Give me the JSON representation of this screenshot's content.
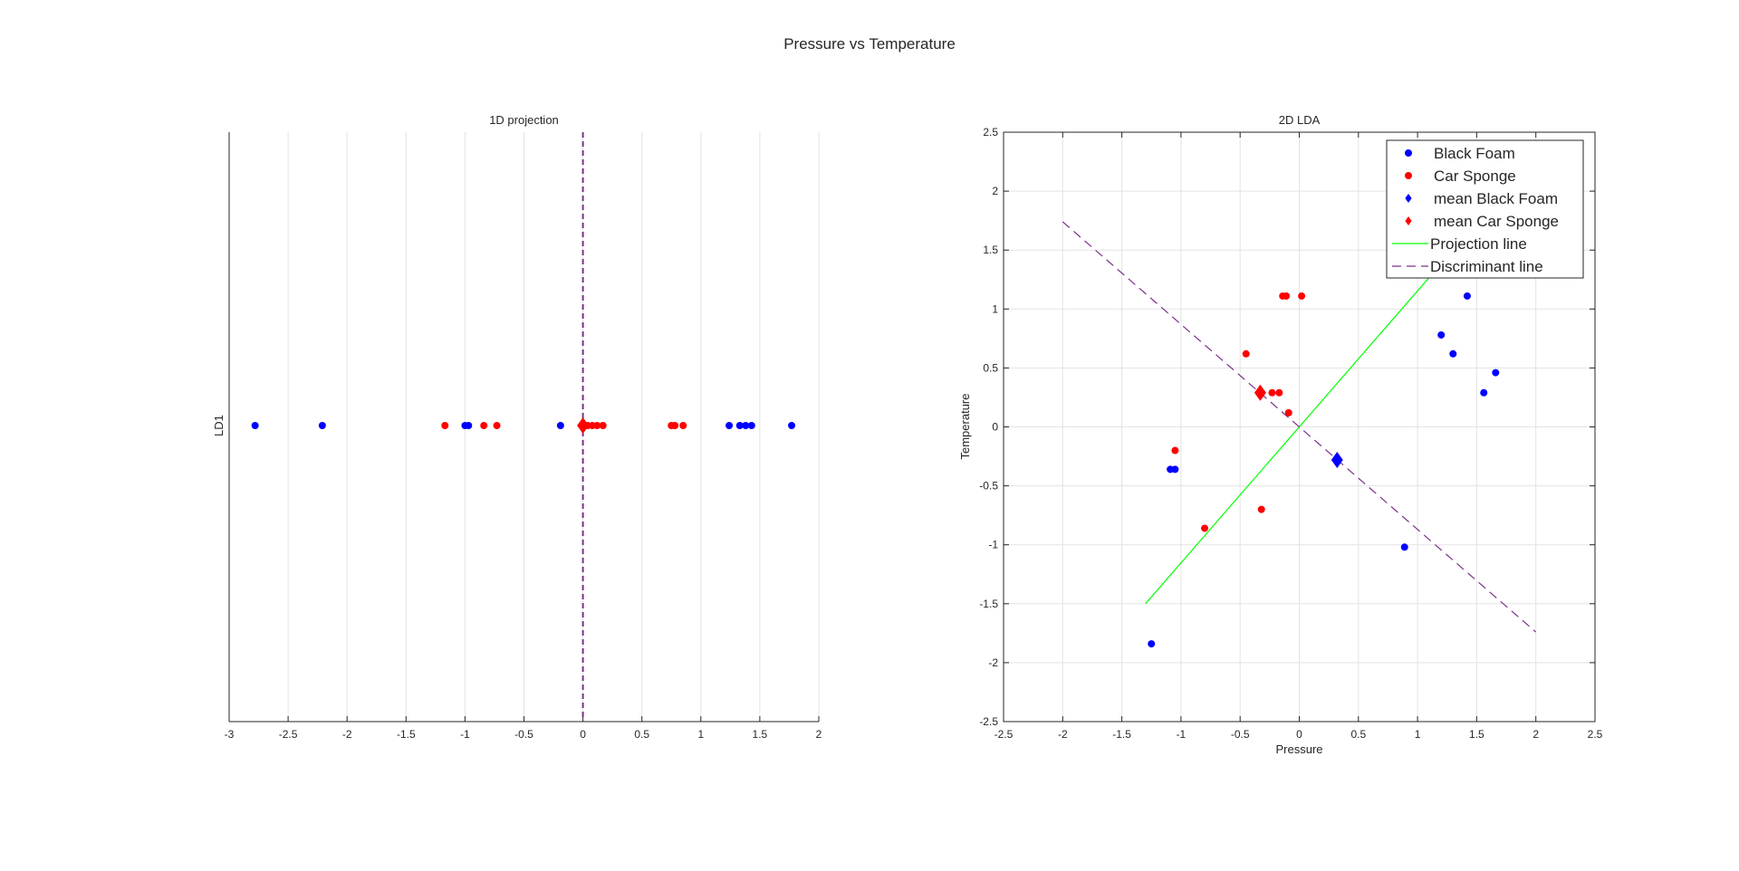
{
  "figure": {
    "title": "Pressure vs Temperature"
  },
  "colors": {
    "blue": "#0000ff",
    "red": "#ff0000",
    "green": "#00ff00",
    "purple": "#7e2f8e",
    "grid": "#e3e3e3",
    "axis": "#262626"
  },
  "chart_data": [
    {
      "type": "scatter",
      "title": "1D projection",
      "xlabel": "",
      "ylabel": "LD1",
      "xlim": [
        -3,
        2
      ],
      "xticks": [
        "-3",
        "-2.5",
        "-2",
        "-1.5",
        "-1",
        "-0.5",
        "0",
        "0.5",
        "1",
        "1.5",
        "2"
      ],
      "grid": "vertical",
      "series": [
        {
          "color_key": "blue",
          "marker": "dot",
          "x": [
            -2.78,
            -2.21,
            -1.0,
            -0.97,
            -0.19,
            1.24,
            1.33,
            1.38,
            1.43,
            1.77
          ]
        },
        {
          "color_key": "red",
          "marker": "dot",
          "x": [
            -1.17,
            -0.84,
            -0.73,
            0.04,
            0.08,
            0.12,
            0.17,
            0.75,
            0.78,
            0.85
          ]
        },
        {
          "color_key": "red",
          "marker": "diamond",
          "x": [
            0.0
          ]
        }
      ],
      "reference_line": {
        "x": 0,
        "style": "dashed",
        "color_key": "purple"
      }
    },
    {
      "type": "scatter",
      "title": "2D LDA",
      "xlabel": "Pressure",
      "ylabel": "Temperature",
      "xlim": [
        -2.5,
        2.5
      ],
      "ylim": [
        -2.5,
        2.5
      ],
      "xticks": [
        "-2.5",
        "-2",
        "-1.5",
        "-1",
        "-0.5",
        "0",
        "0.5",
        "1",
        "1.5",
        "2",
        "2.5"
      ],
      "yticks": [
        "2.5",
        "2",
        "1.5",
        "1",
        "0.5",
        "0",
        "-0.5",
        "-1",
        "-1.5",
        "-2",
        "-2.5"
      ],
      "grid": "both",
      "legend_position": "top-right",
      "series": [
        {
          "name": "Black Foam",
          "color_key": "blue",
          "marker": "dot",
          "x": [
            -1.25,
            -1.09,
            -1.05,
            0.89,
            1.2,
            1.3,
            1.42,
            1.56,
            1.66
          ],
          "y": [
            -1.84,
            -0.36,
            -0.36,
            -1.02,
            0.78,
            0.62,
            1.11,
            0.29,
            0.46
          ]
        },
        {
          "name": "Car Sponge",
          "color_key": "red",
          "marker": "dot",
          "x": [
            -1.05,
            -0.8,
            -0.45,
            -0.32,
            -0.23,
            -0.17,
            -0.14,
            -0.11,
            -0.09,
            0.02
          ],
          "y": [
            -0.2,
            -0.86,
            0.62,
            -0.7,
            0.29,
            0.29,
            1.11,
            1.11,
            0.12,
            1.11
          ]
        },
        {
          "name": "mean  Black Foam",
          "color_key": "blue",
          "marker": "diamond",
          "x": [
            0.32
          ],
          "y": [
            -0.28
          ]
        },
        {
          "name": "mean  Car Sponge",
          "color_key": "red",
          "marker": "diamond",
          "x": [
            -0.33
          ],
          "y": [
            0.29
          ]
        },
        {
          "name": "Projection line",
          "color_key": "green",
          "marker": "line",
          "style": "solid",
          "x": [
            -1.3,
            1.43
          ],
          "y": [
            -1.5,
            1.65
          ]
        },
        {
          "name": "Discriminant line",
          "color_key": "purple",
          "marker": "line",
          "style": "dashed",
          "x": [
            -2.0,
            2.0
          ],
          "y": [
            1.74,
            -1.74
          ]
        }
      ]
    }
  ]
}
